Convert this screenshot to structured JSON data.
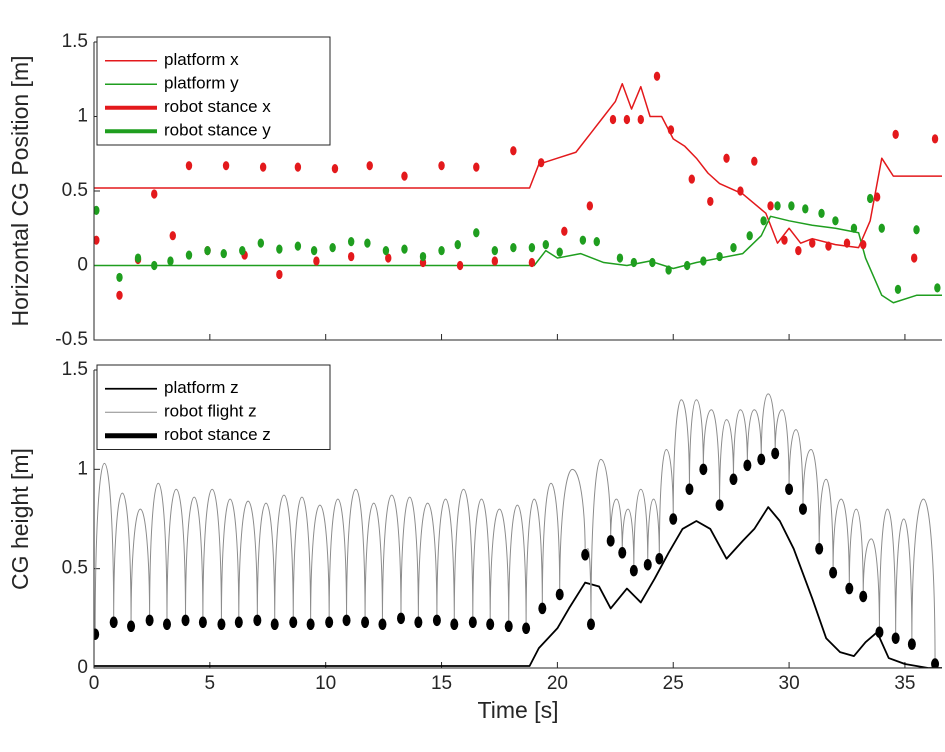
{
  "chart_data": [
    {
      "type": "line",
      "ylabel": "Horizontal CG Position [m]",
      "xlim": [
        0,
        36.6
      ],
      "ylim": [
        -0.5,
        1.5
      ],
      "xticks": [
        0,
        5,
        10,
        15,
        20,
        25,
        30,
        35
      ],
      "show_xtick_labels": false,
      "yticks": [
        -0.5,
        0,
        0.5,
        1,
        1.5
      ],
      "legend": "upper left",
      "series": [
        {
          "name": "platform x",
          "color": "#e3191c",
          "linewidth": 1.5,
          "x": [
            0,
            18.8,
            19.2,
            20,
            20.8,
            21.5,
            22,
            22.5,
            22.8,
            23.2,
            23.6,
            24,
            24.5,
            25,
            25.5,
            26,
            26.5,
            27,
            28,
            29,
            29.5,
            30,
            30.5,
            31,
            32,
            33,
            33.5,
            34,
            34.5,
            36.6
          ],
          "values": [
            0.52,
            0.52,
            0.68,
            0.72,
            0.76,
            0.9,
            1.0,
            1.1,
            1.22,
            1.05,
            1.2,
            1.0,
            1.0,
            0.85,
            0.8,
            0.72,
            0.62,
            0.55,
            0.48,
            0.35,
            0.15,
            0.25,
            0.15,
            0.18,
            0.14,
            0.12,
            0.3,
            0.72,
            0.6,
            0.6
          ]
        },
        {
          "name": "platform y",
          "color": "#1f9e1f",
          "linewidth": 1.5,
          "x": [
            0,
            19,
            19.5,
            20,
            21,
            22,
            23,
            24,
            25,
            26,
            27,
            28,
            28.8,
            29.2,
            30,
            31,
            32,
            33,
            33.3,
            34,
            34.5,
            35.5,
            36.6
          ],
          "values": [
            0,
            0,
            0.1,
            0.05,
            0.08,
            0.02,
            0.0,
            0.03,
            -0.02,
            0.02,
            0.05,
            0.08,
            0.2,
            0.33,
            0.3,
            0.27,
            0.25,
            0.22,
            0.05,
            -0.2,
            -0.25,
            -0.2,
            -0.2
          ]
        },
        {
          "name": "robot stance x",
          "color": "#e3191c",
          "linewidth": 4,
          "draw": "markers",
          "x": [
            0.1,
            1.1,
            1.9,
            2.6,
            3.4,
            4.1,
            4.9,
            5.7,
            6.5,
            7.3,
            8.0,
            8.8,
            9.6,
            10.4,
            11.1,
            11.9,
            12.7,
            13.4,
            14.2,
            15.0,
            15.8,
            16.5,
            17.3,
            18.1,
            18.9,
            19.3,
            20.3,
            21.4,
            22.4,
            23.0,
            23.6,
            24.3,
            24.9,
            25.8,
            26.6,
            27.3,
            27.9,
            28.5,
            29.2,
            29.8,
            30.4,
            31.0,
            31.7,
            32.5,
            33.2,
            33.8,
            34.6,
            35.4,
            36.3
          ],
          "values": [
            0.17,
            -0.2,
            0.04,
            0.48,
            0.2,
            0.67,
            0.1,
            0.67,
            0.07,
            0.66,
            -0.06,
            0.66,
            0.03,
            0.65,
            0.06,
            0.67,
            0.05,
            0.6,
            0.02,
            0.67,
            0.0,
            0.66,
            0.03,
            0.77,
            0.02,
            0.69,
            0.23,
            0.4,
            0.98,
            0.98,
            0.98,
            1.27,
            0.91,
            0.58,
            0.43,
            0.72,
            0.5,
            0.7,
            0.4,
            0.17,
            0.1,
            0.15,
            0.13,
            0.15,
            0.14,
            0.46,
            0.88,
            0.05,
            0.85
          ]
        },
        {
          "name": "robot stance y",
          "color": "#1f9e1f",
          "linewidth": 4,
          "draw": "markers",
          "x": [
            0.1,
            1.1,
            1.9,
            2.6,
            3.3,
            4.1,
            4.9,
            5.6,
            6.4,
            7.2,
            8.0,
            8.8,
            9.5,
            10.3,
            11.1,
            11.8,
            12.6,
            13.4,
            14.2,
            15.0,
            15.7,
            16.5,
            17.3,
            18.1,
            18.9,
            19.5,
            20.1,
            21.1,
            21.7,
            22.7,
            23.3,
            24.1,
            24.8,
            25.6,
            26.3,
            27.0,
            27.6,
            28.3,
            28.9,
            29.5,
            30.1,
            30.7,
            31.4,
            32.0,
            32.8,
            33.5,
            34.0,
            34.7,
            35.5,
            36.4
          ],
          "values": [
            0.37,
            -0.08,
            0.05,
            0.0,
            0.03,
            0.07,
            0.1,
            0.08,
            0.1,
            0.15,
            0.11,
            0.13,
            0.1,
            0.12,
            0.16,
            0.15,
            0.1,
            0.11,
            0.06,
            0.1,
            0.14,
            0.22,
            0.1,
            0.12,
            0.12,
            0.14,
            0.09,
            0.17,
            0.16,
            0.05,
            0.02,
            0.02,
            -0.03,
            0.0,
            0.03,
            0.06,
            0.12,
            0.2,
            0.3,
            0.4,
            0.4,
            0.38,
            0.35,
            0.3,
            0.25,
            0.45,
            0.25,
            -0.16,
            0.24,
            -0.15
          ]
        }
      ]
    },
    {
      "type": "line",
      "xlabel": "Time [s]",
      "ylabel": "CG height [m]",
      "xlim": [
        0,
        36.6
      ],
      "ylim": [
        0,
        1.5
      ],
      "xticks": [
        0,
        5,
        10,
        15,
        20,
        25,
        30,
        35
      ],
      "show_xtick_labels": true,
      "yticks": [
        0,
        0.5,
        1,
        1.5
      ],
      "legend": "upper left",
      "series": [
        {
          "name": "platform z",
          "color": "#000000",
          "linewidth": 1.8,
          "x": [
            0,
            18.8,
            19.2,
            20,
            20.5,
            21.2,
            21.8,
            22.3,
            23,
            23.6,
            24.2,
            24.8,
            25.4,
            26,
            26.6,
            27.3,
            28,
            28.5,
            29.1,
            29.6,
            30.2,
            31,
            31.6,
            32.2,
            32.8,
            33.3,
            33.8,
            34.3,
            35,
            36,
            36.6
          ],
          "values": [
            0.01,
            0.01,
            0.1,
            0.2,
            0.3,
            0.43,
            0.41,
            0.3,
            0.4,
            0.33,
            0.45,
            0.58,
            0.7,
            0.74,
            0.7,
            0.55,
            0.64,
            0.7,
            0.81,
            0.74,
            0.6,
            0.35,
            0.15,
            0.08,
            0.06,
            0.13,
            0.18,
            0.05,
            0.02,
            0.0,
            0.0
          ]
        },
        {
          "name": "robot flight z",
          "color": "#8c8c8c",
          "linewidth": 1,
          "curve": "arc",
          "x": [
            0.05,
            0.45,
            0.85,
            1.225,
            1.6,
            2.0,
            2.4,
            2.775,
            3.15,
            3.55,
            3.95,
            4.325,
            4.7,
            5.1,
            5.5,
            5.875,
            6.25,
            6.65,
            7.05,
            7.425,
            7.8,
            8.2,
            8.6,
            8.975,
            9.35,
            9.75,
            10.15,
            10.525,
            10.9,
            11.3,
            11.7,
            12.075,
            12.45,
            12.85,
            13.25,
            13.625,
            14.0,
            14.4,
            14.8,
            15.175,
            15.55,
            15.95,
            16.35,
            16.725,
            17.1,
            17.5,
            17.9,
            18.275,
            18.65,
            19.0,
            19.35,
            19.725,
            20.1,
            20.65,
            21.2,
            21.325,
            21.45,
            21.875,
            22.3,
            22.55,
            22.8,
            23.05,
            23.3,
            23.6,
            23.9,
            24.15,
            24.4,
            24.7,
            25.0,
            25.35,
            25.7,
            26.0,
            26.3,
            26.65,
            27.0,
            27.3,
            27.6,
            27.9,
            28.2,
            28.5,
            28.8,
            29.1,
            29.4,
            29.7,
            30.0,
            30.3,
            30.6,
            30.95,
            31.3,
            31.6,
            31.9,
            32.25,
            32.6,
            32.9,
            33.2,
            33.55,
            33.9,
            34.25,
            34.6,
            34.95,
            35.3,
            35.8,
            36.3
          ],
          "values": [
            0.17,
            1.03,
            0.23,
            0.88,
            0.21,
            0.8,
            0.24,
            0.93,
            0.22,
            0.9,
            0.24,
            0.86,
            0.23,
            0.9,
            0.22,
            0.85,
            0.23,
            0.84,
            0.24,
            0.83,
            0.22,
            0.87,
            0.23,
            0.86,
            0.22,
            0.82,
            0.23,
            0.85,
            0.24,
            0.9,
            0.23,
            0.83,
            0.22,
            0.87,
            0.25,
            0.86,
            0.23,
            0.83,
            0.24,
            0.85,
            0.22,
            0.9,
            0.23,
            0.85,
            0.22,
            0.8,
            0.21,
            0.82,
            0.2,
            0.85,
            0.3,
            0.93,
            0.37,
            1.0,
            0.57,
            0.6,
            0.22,
            1.05,
            0.64,
            0.85,
            0.58,
            0.8,
            0.49,
            0.9,
            0.52,
            0.85,
            0.55,
            1.1,
            0.75,
            1.35,
            0.9,
            1.35,
            1.0,
            1.3,
            0.82,
            1.25,
            0.95,
            1.3,
            1.02,
            1.3,
            1.05,
            1.38,
            1.08,
            1.3,
            0.9,
            1.2,
            0.8,
            1.1,
            0.6,
            0.95,
            0.48,
            0.85,
            0.4,
            0.8,
            0.36,
            0.65,
            0.18,
            0.8,
            0.15,
            0.75,
            0.12,
            0.85,
            0.02
          ]
        },
        {
          "name": "robot stance z",
          "color": "#000000",
          "linewidth": 5,
          "draw": "markers",
          "x": [
            0.05,
            0.85,
            1.6,
            2.4,
            3.15,
            3.95,
            4.7,
            5.5,
            6.25,
            7.05,
            7.8,
            8.6,
            9.35,
            10.15,
            10.9,
            11.7,
            12.45,
            13.25,
            14.0,
            14.8,
            15.55,
            16.35,
            17.1,
            17.9,
            18.65,
            19.35,
            20.1,
            21.2,
            21.45,
            22.3,
            22.8,
            23.3,
            23.9,
            24.4,
            25.0,
            25.7,
            26.3,
            27.0,
            27.6,
            28.2,
            28.8,
            29.4,
            30.0,
            30.6,
            31.3,
            31.9,
            32.6,
            33.2,
            33.9,
            34.6,
            35.3,
            36.3
          ],
          "values": [
            0.17,
            0.23,
            0.21,
            0.24,
            0.22,
            0.24,
            0.23,
            0.22,
            0.23,
            0.24,
            0.22,
            0.23,
            0.22,
            0.23,
            0.24,
            0.23,
            0.22,
            0.25,
            0.23,
            0.24,
            0.22,
            0.23,
            0.22,
            0.21,
            0.2,
            0.3,
            0.37,
            0.57,
            0.22,
            0.64,
            0.58,
            0.49,
            0.52,
            0.55,
            0.75,
            0.9,
            1.0,
            0.82,
            0.95,
            1.02,
            1.05,
            1.08,
            0.9,
            0.8,
            0.6,
            0.48,
            0.4,
            0.36,
            0.18,
            0.15,
            0.12,
            0.02
          ]
        }
      ]
    }
  ]
}
